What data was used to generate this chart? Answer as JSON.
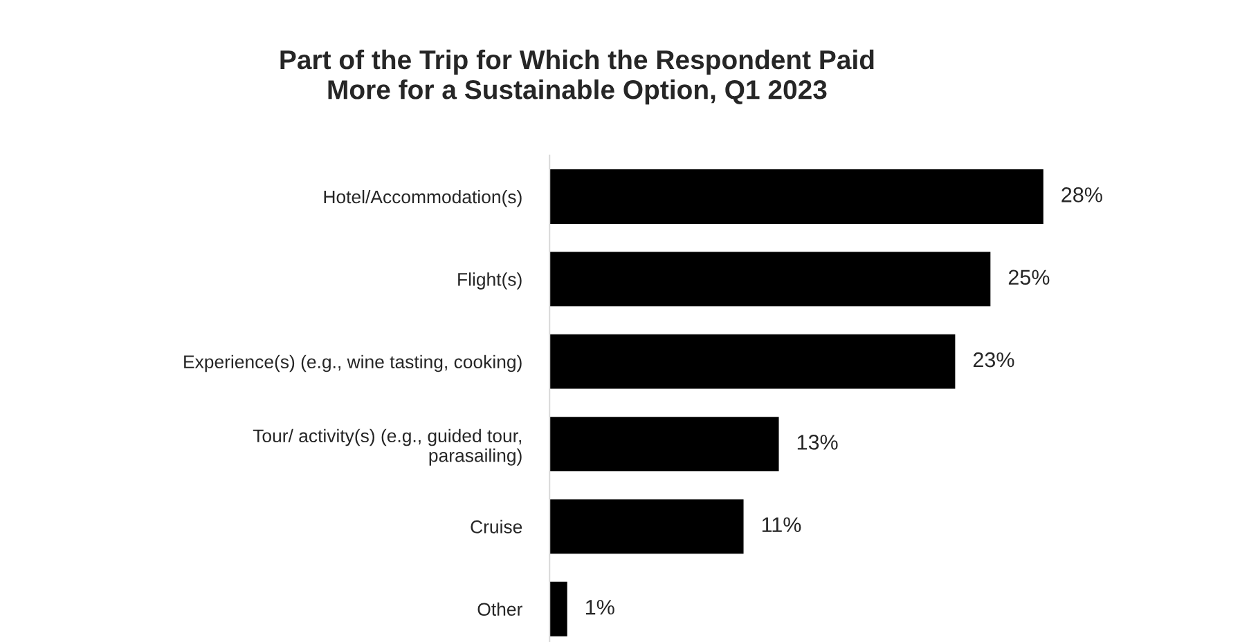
{
  "chart_data": {
    "type": "bar",
    "orientation": "horizontal",
    "title": "Part of the Trip for Which the Respondent Paid\nMore for a Sustainable Option, Q1 2023",
    "categories": [
      "Hotel/Accommodation(s)",
      "Flight(s)",
      "Experience(s) (e.g., wine tasting, cooking)",
      "Tour/ activity(s) (e.g., guided tour,\nparasailing)",
      "Cruise",
      "Other"
    ],
    "values": [
      28,
      25,
      23,
      13,
      11,
      1
    ],
    "value_labels": [
      "28%",
      "25%",
      "23%",
      "13%",
      "11%",
      "1%"
    ],
    "color": "#000000",
    "grid": false,
    "legend": false,
    "tick_labels": "y"
  }
}
